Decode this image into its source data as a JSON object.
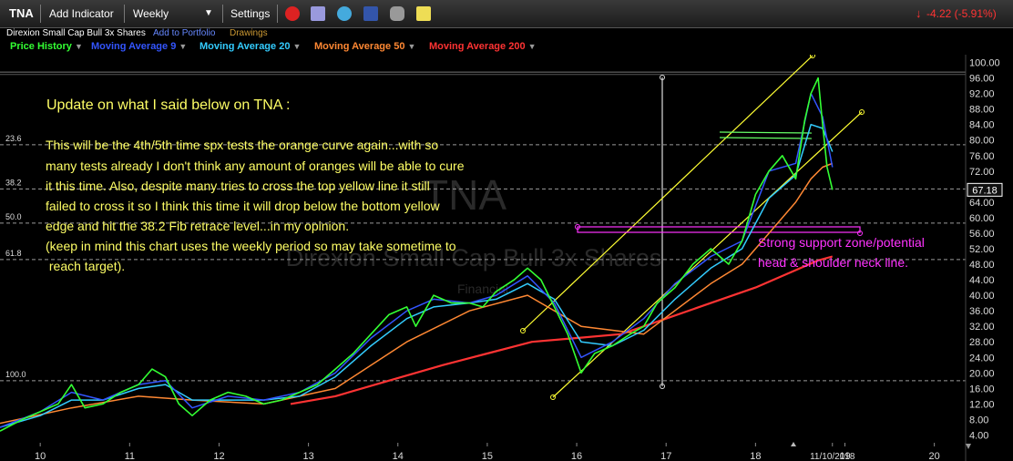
{
  "toolbar": {
    "symbol": "TNA",
    "add_indicator": "Add Indicator",
    "period": "Weekly",
    "settings": "Settings",
    "change": "-4.22 (-5.91%)"
  },
  "subtitle": {
    "name": "Direxion Small Cap Bull 3x Shares",
    "add_to_portfolio": "Add to Portfolio",
    "drawings": "Drawings"
  },
  "indicators": [
    {
      "label": "Price History",
      "color": "#33ff33"
    },
    {
      "label": "Moving Average 9",
      "color": "#3355ff"
    },
    {
      "label": "Moving Average 20",
      "color": "#33ccff"
    },
    {
      "label": "Moving Average 50",
      "color": "#ff8833"
    },
    {
      "label": "Moving Average 200",
      "color": "#ff3333"
    }
  ],
  "watermark": {
    "symbol": "TNA",
    "name": "Direxion Small Cap Bull 3x Shares",
    "financial": "Financial"
  },
  "annotations": {
    "heading": "Update on what I said below on TNA :",
    "lines": [
      "This will be the 4th/5th time spx tests the orange curve again...with so",
      "many tests already I don't think any amount of oranges will be able to cure",
      "it this time.  Also, despite many tries to cross the top yellow line it still",
      "failed to cross it so I think this time it will drop below the bottom yellow",
      "edge and hit the 38.2 Fib retrace level...in my opinion.",
      "(keep in mind this chart uses the weekly period so may take sometime to",
      " reach target)."
    ],
    "support": [
      "Strong support zone/potential",
      "head & shoulder neck line."
    ]
  },
  "chart_data": {
    "type": "line",
    "title": "TNA",
    "x_tick_labels": [
      "10",
      "11",
      "12",
      "13",
      "14",
      "15",
      "16",
      "17",
      "18",
      "11/10/2018",
      "19",
      "20"
    ],
    "x_tick_values": [
      2010,
      2011,
      2012,
      2013,
      2014,
      2015,
      2016,
      2017,
      2018,
      2018.86,
      2019,
      2020
    ],
    "y_tick_labels": [
      "100.00",
      "96.00",
      "92.00",
      "88.00",
      "84.00",
      "80.00",
      "76.00",
      "72.00",
      "68.00",
      "64.00",
      "60.00",
      "56.00",
      "52.00",
      "48.00",
      "44.00",
      "40.00",
      "36.00",
      "32.00",
      "28.00",
      "24.00",
      "20.00",
      "16.00",
      "12.00",
      "8.00",
      "4.00"
    ],
    "ylim": [
      2,
      102
    ],
    "xlim": [
      2009.55,
      2020.35
    ],
    "last_price": "67.18",
    "fib_levels": [
      {
        "label": "23.6",
        "price": 78.8
      },
      {
        "label": "38.2",
        "price": 67.4
      },
      {
        "label": "50.0",
        "price": 58.6
      },
      {
        "label": "61.8",
        "price": 49.2
      },
      {
        "label": "100.0",
        "price": 18.0
      }
    ],
    "series": [
      {
        "name": "Price History",
        "x": [
          2009.55,
          2009.8,
          2010.0,
          2010.2,
          2010.35,
          2010.5,
          2010.7,
          2010.9,
          2011.1,
          2011.25,
          2011.4,
          2011.55,
          2011.7,
          2011.9,
          2012.1,
          2012.3,
          2012.5,
          2012.7,
          2012.9,
          2013.1,
          2013.3,
          2013.5,
          2013.7,
          2013.9,
          2014.1,
          2014.2,
          2014.4,
          2014.6,
          2014.8,
          2014.95,
          2015.1,
          2015.3,
          2015.45,
          2015.6,
          2015.75,
          2015.9,
          2016.05,
          2016.2,
          2016.4,
          2016.6,
          2016.75,
          2016.9,
          2017.1,
          2017.3,
          2017.5,
          2017.7,
          2017.85,
          2018.0,
          2018.15,
          2018.3,
          2018.45,
          2018.55,
          2018.62,
          2018.7,
          2018.75,
          2018.8,
          2018.86
        ],
        "values": [
          5,
          8,
          10,
          12,
          17,
          11,
          12,
          15,
          17,
          21,
          19,
          12,
          9,
          13,
          15,
          14,
          12,
          13,
          15,
          17,
          21,
          25,
          30,
          35,
          37,
          32,
          40,
          38,
          38,
          37,
          41,
          44,
          47,
          44,
          37,
          30,
          20,
          25,
          27,
          30,
          32,
          38,
          42,
          48,
          52,
          48,
          54,
          66,
          72,
          76,
          70,
          85,
          92,
          96,
          84,
          73,
          67.18
        ]
      },
      {
        "name": "Moving Average 9",
        "x": [
          2009.55,
          2010.0,
          2010.35,
          2010.7,
          2011.1,
          2011.4,
          2011.7,
          2012.1,
          2012.5,
          2012.9,
          2013.3,
          2013.7,
          2014.1,
          2014.4,
          2014.8,
          2015.1,
          2015.45,
          2015.75,
          2016.05,
          2016.4,
          2016.75,
          2017.1,
          2017.5,
          2017.85,
          2018.15,
          2018.45,
          2018.62,
          2018.75,
          2018.86
        ],
        "values": [
          6,
          10,
          15,
          13,
          17,
          18,
          11,
          14,
          13,
          15,
          20,
          29,
          36,
          39,
          38,
          40,
          45,
          38,
          24,
          28,
          34,
          43,
          50,
          54,
          72,
          74,
          92,
          86,
          73
        ]
      },
      {
        "name": "Moving Average 20",
        "x": [
          2009.55,
          2010.0,
          2010.35,
          2010.7,
          2011.1,
          2011.4,
          2011.7,
          2012.1,
          2012.5,
          2012.9,
          2013.3,
          2013.7,
          2014.1,
          2014.4,
          2014.8,
          2015.1,
          2015.45,
          2015.75,
          2016.05,
          2016.4,
          2016.75,
          2017.1,
          2017.5,
          2017.85,
          2018.15,
          2018.45,
          2018.62,
          2018.75,
          2018.86
        ],
        "values": [
          6,
          9,
          13,
          13,
          16,
          17,
          13,
          13,
          13,
          14,
          19,
          27,
          34,
          37,
          38,
          39,
          43,
          39,
          28,
          27,
          31,
          39,
          47,
          52,
          65,
          71,
          84,
          83,
          77
        ]
      },
      {
        "name": "Moving Average 50",
        "x": [
          2009.55,
          2010.35,
          2011.1,
          2011.7,
          2012.5,
          2013.3,
          2014.1,
          2014.8,
          2015.45,
          2016.05,
          2016.75,
          2017.5,
          2017.85,
          2018.15,
          2018.45,
          2018.62,
          2018.75,
          2018.86
        ],
        "values": [
          7,
          11,
          14,
          13,
          12,
          16,
          28,
          36,
          40,
          32,
          30,
          43,
          48,
          56,
          64,
          70,
          73,
          74
        ]
      },
      {
        "name": "Moving Average 200",
        "x": [
          2012.8,
          2013.3,
          2013.9,
          2014.5,
          2015.0,
          2015.5,
          2016.0,
          2016.5,
          2017.0,
          2017.5,
          2018.0,
          2018.4,
          2018.7,
          2018.86
        ],
        "values": [
          12,
          14,
          18,
          22,
          25,
          28,
          29,
          30,
          34,
          38,
          42,
          46,
          49,
          50
        ]
      }
    ]
  }
}
